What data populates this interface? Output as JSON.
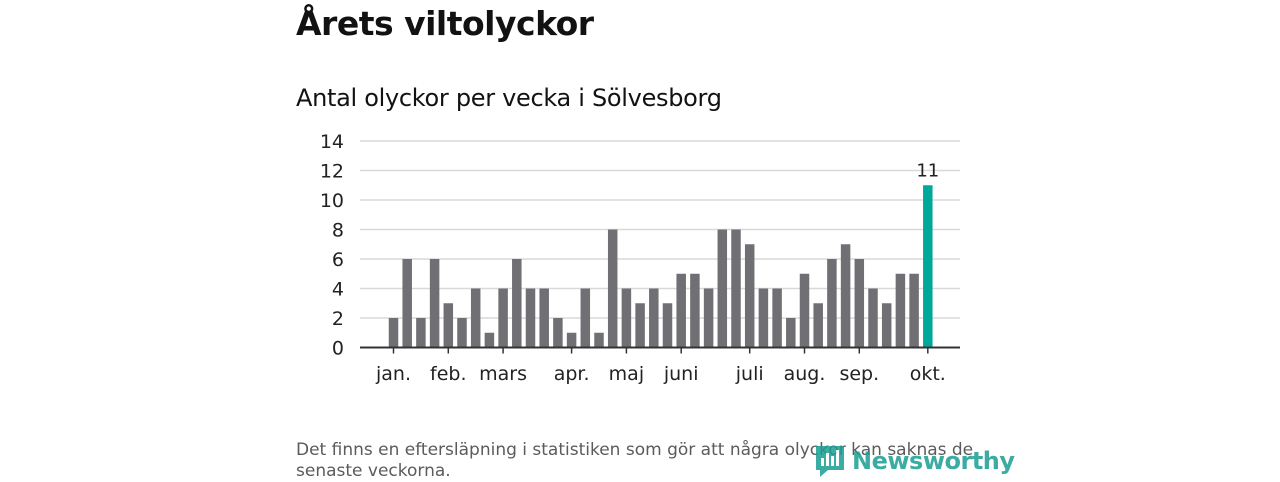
{
  "header": {
    "title": "Årets viltolyckor",
    "subtitle": "Antal olyckor per vecka i Sölvesborg"
  },
  "footer": {
    "note": "Det finns en eftersläpning i statistiken som gör att några olyckor kan saknas de senaste veckorna.",
    "brand": "Newsworthy"
  },
  "colors": {
    "bar": "#706f73",
    "highlight": "#00a89c",
    "grid": "#d9d9d9",
    "axis": "#333333",
    "text": "#222222"
  },
  "chart_data": {
    "type": "bar",
    "title": "Antal olyckor per vecka i Sölvesborg",
    "xlabel": "",
    "ylabel": "",
    "ylim": [
      0,
      14
    ],
    "yticks": [
      0,
      2,
      4,
      6,
      8,
      10,
      12,
      14
    ],
    "grid": true,
    "values": [
      2,
      6,
      2,
      6,
      3,
      2,
      4,
      1,
      4,
      6,
      4,
      4,
      2,
      1,
      4,
      1,
      8,
      4,
      3,
      4,
      3,
      5,
      5,
      4,
      8,
      8,
      7,
      4,
      4,
      2,
      5,
      3,
      6,
      7,
      6,
      4,
      3,
      5,
      5,
      11
    ],
    "highlight_index": 39,
    "highlight_label": "11",
    "month_labels": [
      {
        "label": "jan.",
        "bar_index": 0
      },
      {
        "label": "feb.",
        "bar_index": 4
      },
      {
        "label": "mars",
        "bar_index": 8
      },
      {
        "label": "apr.",
        "bar_index": 13
      },
      {
        "label": "maj",
        "bar_index": 17
      },
      {
        "label": "juni",
        "bar_index": 21
      },
      {
        "label": "juli",
        "bar_index": 26
      },
      {
        "label": "aug.",
        "bar_index": 30
      },
      {
        "label": "sep.",
        "bar_index": 34
      },
      {
        "label": "okt.",
        "bar_index": 39
      }
    ]
  }
}
